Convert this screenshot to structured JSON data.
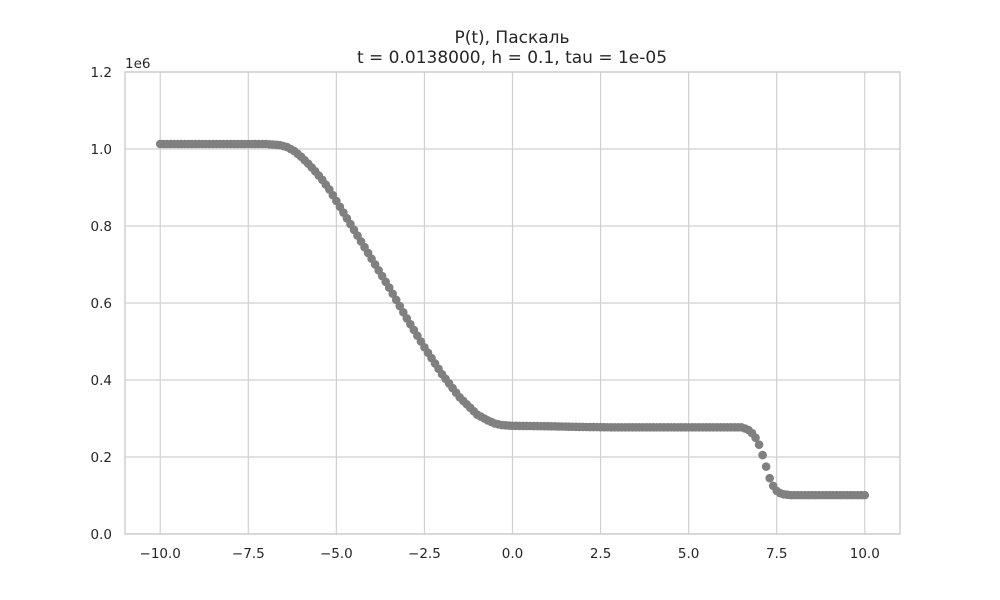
{
  "chart_data": {
    "type": "scatter",
    "title_line1": "P(t), Паскаль",
    "title_line2": "t = 0.0138000, h = 0.1, tau = 1e-05",
    "xlabel": "",
    "ylabel": "",
    "y_offset_label": "1e6",
    "xlim": [
      -11.0,
      11.0
    ],
    "ylim": [
      0.0,
      1.2
    ],
    "y_multiplier": 1000000,
    "grid": true,
    "x_ticks": [
      -10.0,
      -7.5,
      -5.0,
      -2.5,
      0.0,
      2.5,
      5.0,
      7.5,
      10.0
    ],
    "x_tick_labels": [
      "−10.0",
      "−7.5",
      "−5.0",
      "−2.5",
      "0.0",
      "2.5",
      "5.0",
      "7.5",
      "10.0"
    ],
    "y_ticks": [
      0.0,
      0.2,
      0.4,
      0.6,
      0.8,
      1.0,
      1.2
    ],
    "y_tick_labels": [
      "0.0",
      "0.2",
      "0.4",
      "0.6",
      "0.8",
      "1.0",
      "1.2"
    ],
    "marker_color": "#808080",
    "series": [
      {
        "x_start": -10.0,
        "x_end": 10.0,
        "x_step": 0.1,
        "curve_points_x": [
          -10.0,
          -7.0,
          -6.6,
          -6.4,
          -6.2,
          -6.0,
          -5.8,
          -5.6,
          -5.4,
          -5.2,
          -5.0,
          -4.5,
          -4.0,
          -3.5,
          -3.0,
          -2.5,
          -2.0,
          -1.5,
          -1.0,
          -0.7,
          -0.5,
          -0.3,
          0.0,
          1.0,
          2.0,
          3.0,
          5.0,
          6.5,
          6.6,
          6.7,
          6.8,
          6.9,
          7.0,
          7.1,
          7.2,
          7.3,
          7.4,
          7.5,
          7.6,
          7.7,
          7.8,
          7.9,
          8.0,
          8.5,
          10.0
        ],
        "curve_points_y": [
          1.013,
          1.013,
          1.01,
          1.005,
          0.995,
          0.98,
          0.962,
          0.942,
          0.92,
          0.895,
          0.865,
          0.79,
          0.715,
          0.64,
          0.56,
          0.485,
          0.415,
          0.355,
          0.31,
          0.295,
          0.287,
          0.283,
          0.281,
          0.28,
          0.278,
          0.277,
          0.277,
          0.277,
          0.274,
          0.27,
          0.262,
          0.25,
          0.232,
          0.205,
          0.175,
          0.145,
          0.125,
          0.112,
          0.106,
          0.103,
          0.102,
          0.101,
          0.101,
          0.101,
          0.101
        ]
      }
    ]
  }
}
